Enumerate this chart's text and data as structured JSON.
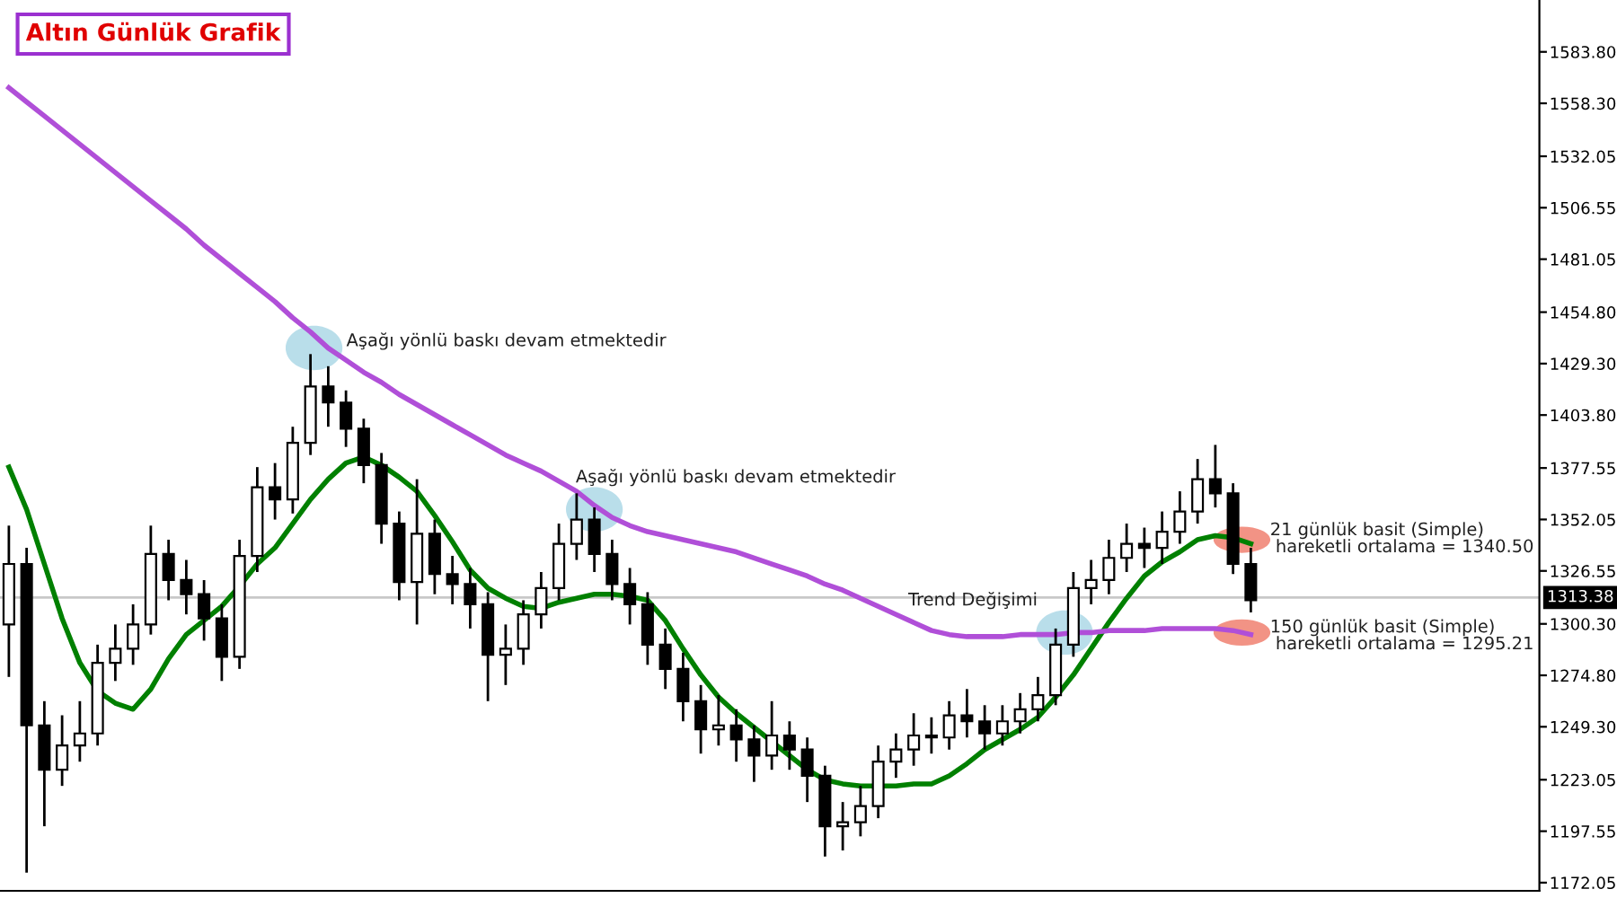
{
  "chart_data": {
    "type": "candlestick",
    "title": "Altın Günlük Grafik",
    "categories": [
      null,
      null,
      null,
      null,
      null,
      null,
      null,
      null,
      null,
      null,
      null,
      null,
      null,
      null,
      null,
      null,
      null,
      null,
      null,
      null,
      null,
      null,
      null,
      null,
      null,
      null,
      null,
      null,
      null,
      null,
      null,
      null,
      null,
      null,
      null,
      null,
      null,
      null,
      null,
      null,
      null,
      null,
      null,
      null,
      null,
      null,
      null,
      null,
      null,
      null,
      null,
      null,
      null,
      null,
      null,
      null,
      null,
      null,
      null,
      null,
      null,
      null,
      null,
      null,
      null,
      null,
      null,
      null,
      null,
      null,
      null
    ],
    "ohlc": [
      [
        1300,
        1349,
        1274,
        1330
      ],
      [
        1330,
        1338,
        1177,
        1250
      ],
      [
        1250,
        1262,
        1200,
        1228
      ],
      [
        1228,
        1255,
        1220,
        1240
      ],
      [
        1240,
        1262,
        1232,
        1246
      ],
      [
        1246,
        1290,
        1240,
        1281
      ],
      [
        1281,
        1300,
        1272,
        1288
      ],
      [
        1288,
        1310,
        1280,
        1300
      ],
      [
        1300,
        1349,
        1295,
        1335
      ],
      [
        1335,
        1342,
        1312,
        1322
      ],
      [
        1322,
        1332,
        1305,
        1315
      ],
      [
        1315,
        1322,
        1292,
        1303
      ],
      [
        1303,
        1310,
        1272,
        1284
      ],
      [
        1284,
        1342,
        1278,
        1334
      ],
      [
        1334,
        1378,
        1326,
        1368
      ],
      [
        1368,
        1380,
        1352,
        1362
      ],
      [
        1362,
        1398,
        1355,
        1390
      ],
      [
        1390,
        1434,
        1384,
        1418
      ],
      [
        1418,
        1428,
        1398,
        1410
      ],
      [
        1410,
        1416,
        1388,
        1397
      ],
      [
        1397,
        1402,
        1370,
        1379
      ],
      [
        1379,
        1385,
        1340,
        1350
      ],
      [
        1350,
        1356,
        1312,
        1321
      ],
      [
        1321,
        1372,
        1300,
        1345
      ],
      [
        1345,
        1352,
        1315,
        1325
      ],
      [
        1325,
        1334,
        1310,
        1320
      ],
      [
        1320,
        1328,
        1298,
        1310
      ],
      [
        1310,
        1316,
        1262,
        1285
      ],
      [
        1285,
        1300,
        1270,
        1288
      ],
      [
        1288,
        1312,
        1280,
        1305
      ],
      [
        1305,
        1326,
        1298,
        1318
      ],
      [
        1318,
        1350,
        1312,
        1340
      ],
      [
        1340,
        1365,
        1332,
        1352
      ],
      [
        1352,
        1358,
        1326,
        1335
      ],
      [
        1335,
        1342,
        1312,
        1320
      ],
      [
        1320,
        1328,
        1300,
        1310
      ],
      [
        1310,
        1316,
        1280,
        1290
      ],
      [
        1290,
        1298,
        1268,
        1278
      ],
      [
        1278,
        1286,
        1252,
        1262
      ],
      [
        1262,
        1270,
        1236,
        1248
      ],
      [
        1248,
        1265,
        1240,
        1250
      ],
      [
        1250,
        1258,
        1232,
        1243
      ],
      [
        1243,
        1250,
        1222,
        1235
      ],
      [
        1235,
        1262,
        1228,
        1245
      ],
      [
        1245,
        1252,
        1228,
        1238
      ],
      [
        1238,
        1244,
        1212,
        1225
      ],
      [
        1225,
        1230,
        1185,
        1200
      ],
      [
        1200,
        1212,
        1188,
        1202
      ],
      [
        1202,
        1220,
        1195,
        1210
      ],
      [
        1210,
        1240,
        1204,
        1232
      ],
      [
        1232,
        1246,
        1224,
        1238
      ],
      [
        1238,
        1256,
        1230,
        1245
      ],
      [
        1245,
        1254,
        1236,
        1244
      ],
      [
        1244,
        1262,
        1238,
        1255
      ],
      [
        1255,
        1268,
        1244,
        1252
      ],
      [
        1252,
        1260,
        1238,
        1246
      ],
      [
        1246,
        1260,
        1240,
        1252
      ],
      [
        1252,
        1266,
        1246,
        1258
      ],
      [
        1258,
        1274,
        1252,
        1265
      ],
      [
        1265,
        1298,
        1260,
        1290
      ],
      [
        1290,
        1326,
        1284,
        1318
      ],
      [
        1318,
        1332,
        1310,
        1322
      ],
      [
        1322,
        1342,
        1315,
        1333
      ],
      [
        1333,
        1350,
        1326,
        1340
      ],
      [
        1340,
        1348,
        1328,
        1338
      ],
      [
        1338,
        1356,
        1330,
        1346
      ],
      [
        1346,
        1366,
        1340,
        1356
      ],
      [
        1356,
        1382,
        1350,
        1372
      ],
      [
        1372,
        1389,
        1358,
        1365
      ],
      [
        1365,
        1370,
        1325,
        1330
      ],
      [
        1330,
        1338,
        1306,
        1312
      ]
    ],
    "series": [
      {
        "type": "line",
        "color": "#008000",
        "values": [
          1378,
          1357,
          1330,
          1303,
          1281,
          1267,
          1261,
          1258,
          1268,
          1283,
          1295,
          1302,
          1309,
          1319,
          1330,
          1338,
          1350,
          1362,
          1372,
          1380,
          1383,
          1379,
          1373,
          1366,
          1354,
          1341,
          1327,
          1318,
          1313,
          1309,
          1308,
          1311,
          1313,
          1315,
          1315,
          1314,
          1312,
          1302,
          1288,
          1275,
          1264,
          1256,
          1249,
          1242,
          1235,
          1228,
          1223,
          1221,
          1220,
          1220,
          1220,
          1221,
          1221,
          1225,
          1231,
          1238,
          1243,
          1248,
          1254,
          1264,
          1275,
          1288,
          1301,
          1313,
          1324,
          1331,
          1336,
          1342,
          1344,
          1343,
          1340
        ]
      },
      {
        "type": "line",
        "color": "#b04fd8",
        "values": [
          1566,
          1559,
          1552,
          1545,
          1538,
          1531,
          1524,
          1517,
          1510,
          1503,
          1496,
          1488,
          1481,
          1474,
          1467,
          1460,
          1452,
          1445,
          1437,
          1431,
          1425,
          1420,
          1414,
          1409,
          1404,
          1399,
          1394,
          1389,
          1384,
          1380,
          1376,
          1371,
          1366,
          1359,
          1353,
          1349,
          1346,
          1344,
          1342,
          1340,
          1338,
          1336,
          1333,
          1330,
          1327,
          1324,
          1320,
          1317,
          1313,
          1309,
          1305,
          1301,
          1297,
          1295,
          1294,
          1294,
          1294,
          1295,
          1295,
          1295,
          1296,
          1296,
          1297,
          1297,
          1297,
          1298,
          1298,
          1298,
          1298,
          1297,
          1295
        ]
      }
    ],
    "ylim": [
      1168,
      1609.5
    ],
    "yticks": [
      1172.05,
      1197.55,
      1223.05,
      {
        "value": 1249.3,
        "label": "1249.30"
      },
      {
        "value": 1274.8,
        "label": "1274.80"
      },
      {
        "value": 1300.3,
        "label": "1300.30"
      },
      1326.55,
      1352.05,
      1377.55,
      {
        "value": 1403.8,
        "label": "1403.80"
      },
      {
        "value": 1429.3,
        "label": "1429.30"
      },
      {
        "value": 1454.8,
        "label": "1454.80"
      },
      1481.05,
      1506.55,
      1532.05,
      {
        "value": 1558.3,
        "label": "1558.30"
      },
      {
        "value": 1583.8,
        "label": "1583.80"
      }
    ],
    "ref_lines": [
      {
        "axis": "y",
        "value": 1313.38,
        "label": "1313.38",
        "color": "#c8c8c8"
      }
    ],
    "annotations": [
      "Aşağı yönlü baskı devam etmektedir",
      "Aşağı yönlü baskı devam etmektedir",
      "Trend Değişimi",
      "21 günlük basit (Simple)\n hareketli ortalama = 1340.50",
      "150 günlük basit (Simple)\n hareketli ortalama = 1295.21"
    ],
    "grid": false,
    "tick_labels": "y"
  }
}
